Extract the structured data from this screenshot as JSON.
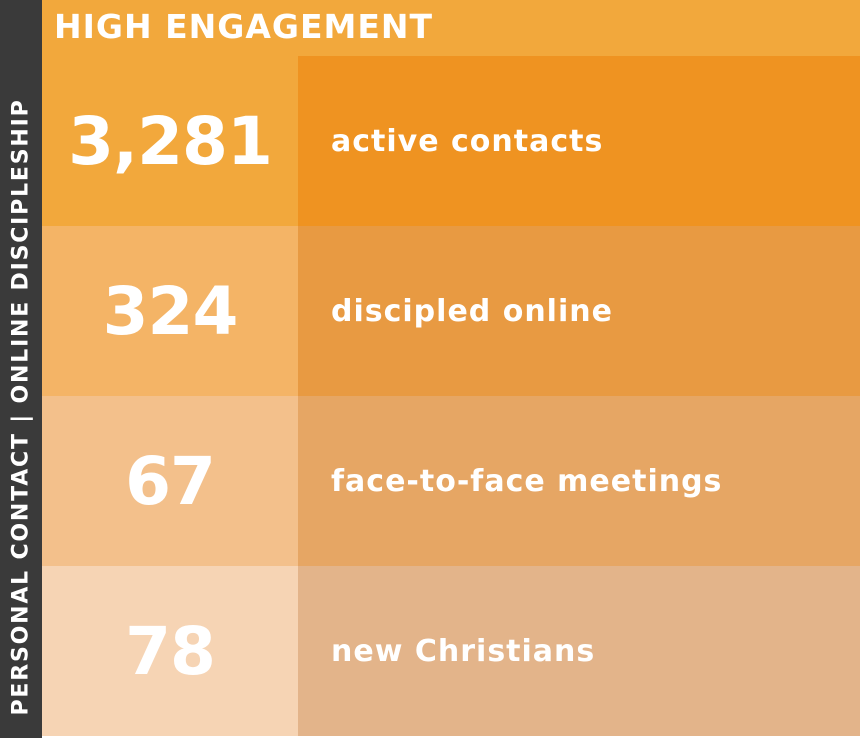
{
  "side_label": "PERSONAL CONTACT | ONLINE DISCIPLESHIP",
  "header": {
    "title": "HIGH ENGAGEMENT"
  },
  "colors": {
    "sidebar": "#3a3a3a",
    "header": "#f2a83c",
    "row_number_backgrounds": [
      "#f2a83c",
      "#f4b466",
      "#f3c08b",
      "#f6d4b4"
    ],
    "row_text_backgrounds": [
      "#ef9321",
      "#e89a42",
      "#e6a664",
      "#e3b48a"
    ],
    "text": "#ffffff"
  },
  "stats": [
    {
      "value": "3,281",
      "label": "active contacts"
    },
    {
      "value": "324",
      "label": "discipled online"
    },
    {
      "value": "67",
      "label": "face-to-face meetings"
    },
    {
      "value": "78",
      "label": "new Christians"
    }
  ]
}
